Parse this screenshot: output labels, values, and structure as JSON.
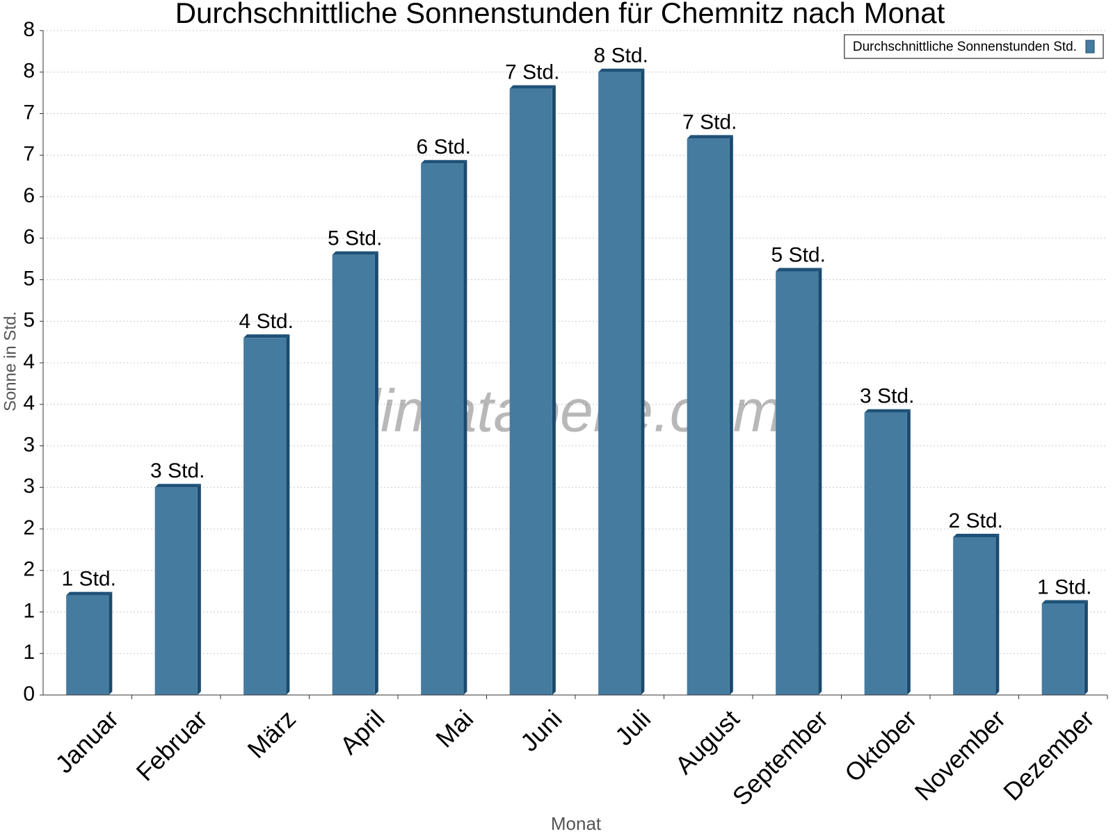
{
  "chart_data": {
    "type": "bar",
    "title": "Durchschnittliche Sonnenstunden für Chemnitz nach Monat",
    "x_label": "Monat",
    "y_label": "Sonne in Std.",
    "watermark": "klimatabelle.com",
    "categories": [
      "Januar",
      "Februar",
      "März",
      "April",
      "Mai",
      "Juni",
      "Juli",
      "August",
      "September",
      "Oktober",
      "November",
      "Dezember"
    ],
    "series": [
      {
        "name": "Durchschnittliche Sonnenstunden Std.",
        "color": "#467ba0",
        "values": [
          1.2,
          2.5,
          4.3,
          5.3,
          6.4,
          7.3,
          7.5,
          6.7,
          5.1,
          3.4,
          1.9,
          1.1
        ],
        "value_labels": [
          "1 Std.",
          "3 Std.",
          "4 Std.",
          "5 Std.",
          "6 Std.",
          "7 Std.",
          "8 Std.",
          "7 Std.",
          "5 Std.",
          "3 Std.",
          "2 Std.",
          "1 Std."
        ]
      }
    ],
    "ylim": [
      0,
      8
    ],
    "yticks": [
      0,
      {
        "value": 0.5,
        "label": "1"
      },
      1,
      {
        "value": 1.5,
        "label": "2"
      },
      2,
      {
        "value": 2.5,
        "label": "3"
      },
      3,
      {
        "value": 3.5,
        "label": "4"
      },
      4,
      {
        "value": 4.5,
        "label": "5"
      },
      5,
      {
        "value": 5.5,
        "label": "6"
      },
      6,
      {
        "value": 6.5,
        "label": "7"
      },
      7,
      {
        "value": 7.5,
        "label": "8"
      },
      8
    ],
    "grid": true,
    "legend": "top-right"
  }
}
